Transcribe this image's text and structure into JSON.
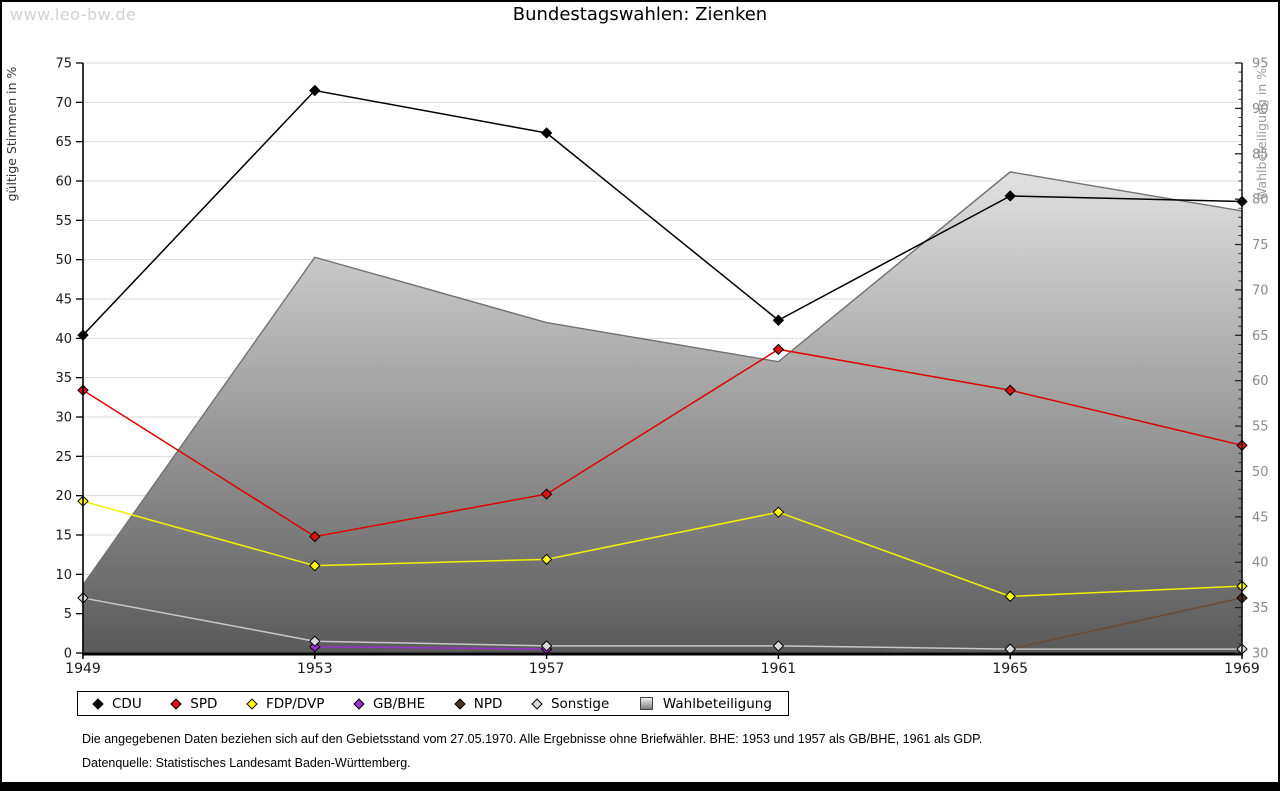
{
  "watermark": "www.leo-bw.de",
  "title": "Bundestagswahlen: Zienken",
  "footnotes": [
    "Die angegebenen Daten beziehen sich auf den Gebietsstand vom 27.05.1970. Alle Ergebnisse ohne Briefwähler. BHE: 1953 und 1957 als GB/BHE, 1961 als GDP.",
    "Datenquelle: Statistisches Landesamt Baden-Württemberg."
  ],
  "chart_data": {
    "type": "line",
    "x": [
      1949,
      1953,
      1957,
      1961,
      1965,
      1969
    ],
    "axes": {
      "left": {
        "label": "gültige Stimmen in %",
        "min": 0,
        "max": 75,
        "step": 5
      },
      "right": {
        "label": "Wahlbeteiligung in %",
        "min": 30,
        "max": 95,
        "step": 5
      }
    },
    "grid": true,
    "legend_position": "bottom",
    "colors": {
      "gridline": "#dadada",
      "axis": "#000000",
      "left_tick_label": "#1a1a1a",
      "right_tick_label": "#8a8a8a",
      "left_axis_title": "#333333",
      "right_axis_title": "#999999"
    },
    "series": [
      {
        "name": "CDU",
        "axis": "left",
        "color": "#000000",
        "marker_fill": "#000000",
        "values": [
          40.4,
          71.5,
          66.1,
          42.3,
          58.1,
          57.4
        ]
      },
      {
        "name": "SPD",
        "axis": "left",
        "color": "#e00000",
        "marker_fill": "#dd1111",
        "values": [
          33.4,
          14.8,
          20.2,
          38.6,
          33.4,
          26.4
        ]
      },
      {
        "name": "FDP/DVP",
        "axis": "left",
        "color": "#f2f200",
        "marker_fill": "#ffff00",
        "values": [
          19.3,
          11.1,
          11.9,
          17.9,
          7.2,
          8.5
        ]
      },
      {
        "name": "GB/BHE",
        "axis": "left",
        "color": "#9932cc",
        "marker_fill": "#9932cc",
        "values": [
          null,
          0.8,
          0.5,
          null,
          null,
          null
        ]
      },
      {
        "name": "NPD",
        "axis": "left",
        "color": "#6b4a33",
        "marker_fill": "#4f2f1f",
        "values": [
          null,
          null,
          null,
          null,
          0.5,
          7.0
        ]
      },
      {
        "name": "Sonstige",
        "axis": "left",
        "color": "#c8c8c8",
        "marker_fill": "#d9d9d9",
        "values": [
          7.0,
          1.5,
          0.9,
          0.9,
          0.5,
          0.5
        ]
      }
    ],
    "area_series": {
      "name": "Wahlbeteiligung",
      "axis": "right",
      "values": [
        37.5,
        73.6,
        66.4,
        62.1,
        83.0,
        78.7
      ],
      "outline_color": "#717171",
      "gradient_top": "#ffffff",
      "gradient_bottom": "#5a5a5a"
    }
  }
}
